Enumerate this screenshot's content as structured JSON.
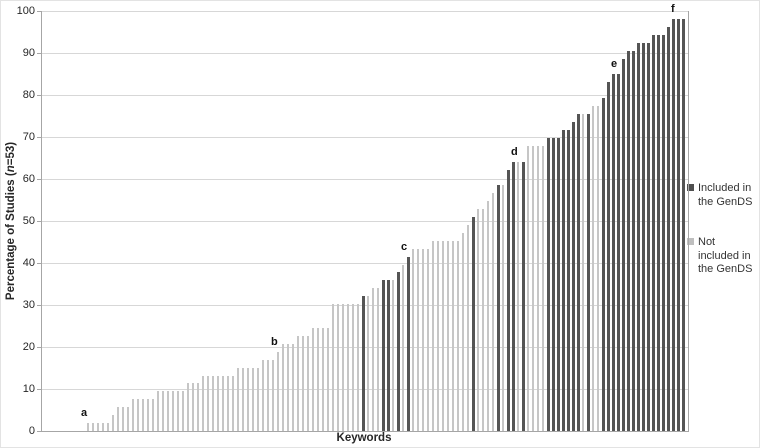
{
  "y_axis": {
    "title_prefix": "Percentage of Studies (",
    "title_n": "n",
    "title_suffix": "=53)",
    "ticks": [
      0,
      10,
      20,
      30,
      40,
      50,
      60,
      70,
      80,
      90,
      100
    ]
  },
  "x_axis": {
    "title": "Keywords"
  },
  "legend": {
    "items": [
      {
        "label": "Included in\nthe GenDS",
        "color": "#4f4f4f"
      },
      {
        "label": "Not\nincluded in\nthe GenDS",
        "color": "#bfbfbf"
      }
    ]
  },
  "chart_data": {
    "type": "bar",
    "title": "",
    "xlabel": "Keywords",
    "ylabel": "Percentage of Studies (n=53)",
    "ylim": [
      0,
      100
    ],
    "yticks": [
      0,
      10,
      20,
      30,
      40,
      50,
      60,
      70,
      80,
      90,
      100
    ],
    "grid": "horizontal-light-gray",
    "legend_position": "right",
    "bar_colors": {
      "included": "#555555",
      "not_included": "#c6c6c6"
    },
    "note": "120 keyword bars sorted ascending; values are percentages of 53 studies (multiples of 1/53). included=1 means dark bar (Included in the GenDS).",
    "values": [
      1.89,
      1.89,
      1.89,
      1.89,
      1.89,
      3.77,
      5.66,
      5.66,
      5.66,
      7.55,
      7.55,
      7.55,
      7.55,
      7.55,
      9.43,
      9.43,
      9.43,
      9.43,
      9.43,
      9.43,
      11.32,
      11.32,
      11.32,
      13.21,
      13.21,
      13.21,
      13.21,
      13.21,
      13.21,
      13.21,
      15.09,
      15.09,
      15.09,
      15.09,
      15.09,
      16.98,
      16.98,
      16.98,
      18.87,
      20.75,
      20.75,
      20.75,
      22.64,
      22.64,
      22.64,
      24.53,
      24.53,
      24.53,
      24.53,
      30.19,
      30.19,
      30.19,
      30.19,
      30.19,
      30.19,
      32.08,
      32.08,
      33.96,
      33.96,
      35.85,
      35.85,
      35.85,
      37.74,
      39.62,
      41.51,
      43.4,
      43.4,
      43.4,
      43.4,
      45.28,
      45.28,
      45.28,
      45.28,
      45.28,
      45.28,
      47.17,
      49.06,
      50.94,
      52.83,
      52.83,
      54.72,
      56.6,
      58.49,
      58.49,
      62.26,
      64.15,
      64.15,
      64.15,
      67.92,
      67.92,
      67.92,
      67.92,
      69.81,
      69.81,
      69.81,
      71.7,
      71.7,
      73.58,
      75.47,
      75.47,
      75.47,
      77.36,
      77.36,
      79.25,
      83.02,
      84.91,
      84.91,
      88.68,
      90.57,
      90.57,
      92.45,
      92.45,
      92.45,
      94.34,
      94.34,
      94.34,
      96.23,
      98.11,
      98.11,
      98.11
    ],
    "included": [
      0,
      0,
      0,
      0,
      0,
      0,
      0,
      0,
      0,
      0,
      0,
      0,
      0,
      0,
      0,
      0,
      0,
      0,
      0,
      0,
      0,
      0,
      0,
      0,
      0,
      0,
      0,
      0,
      0,
      0,
      0,
      0,
      0,
      0,
      0,
      0,
      0,
      0,
      0,
      0,
      0,
      0,
      0,
      0,
      0,
      0,
      0,
      0,
      0,
      0,
      0,
      0,
      0,
      0,
      0,
      1,
      0,
      0,
      0,
      1,
      1,
      0,
      1,
      0,
      1,
      0,
      0,
      0,
      0,
      0,
      0,
      0,
      0,
      0,
      0,
      0,
      0,
      1,
      0,
      0,
      0,
      0,
      1,
      0,
      1,
      1,
      0,
      1,
      0,
      0,
      0,
      0,
      1,
      1,
      1,
      1,
      1,
      1,
      1,
      0,
      1,
      0,
      0,
      1,
      1,
      1,
      1,
      1,
      1,
      1,
      1,
      1,
      1,
      1,
      1,
      1,
      1,
      1,
      1,
      1
    ],
    "annotations": [
      {
        "label": "a",
        "bar": 1
      },
      {
        "label": "b",
        "bar": 39
      },
      {
        "label": "c",
        "bar": 65
      },
      {
        "label": "d",
        "bar": 87
      },
      {
        "label": "e",
        "bar": 107
      },
      {
        "label": "f",
        "bar": 119
      }
    ]
  }
}
